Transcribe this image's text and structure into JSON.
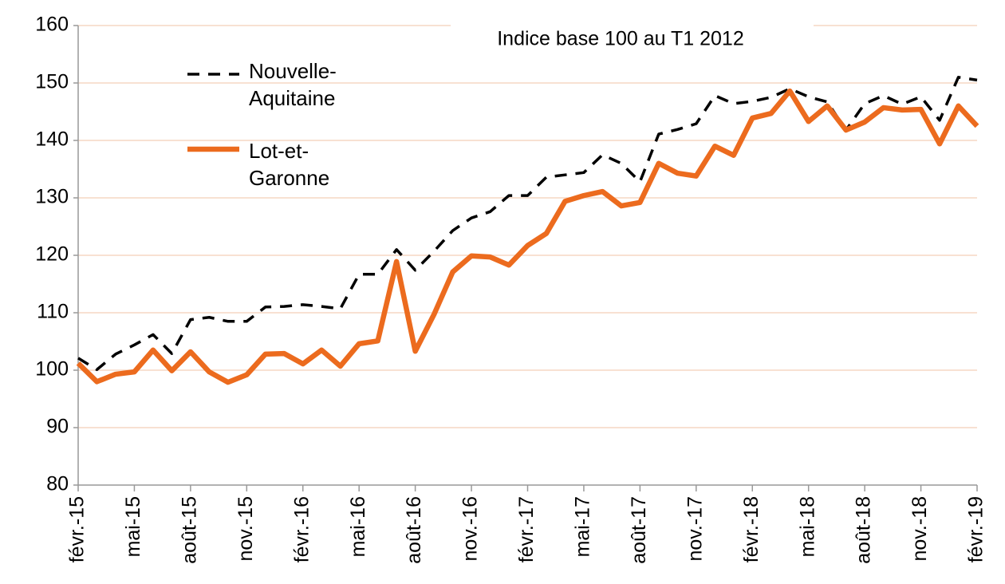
{
  "chart_data": {
    "type": "line",
    "title": "Indice base 100 au T1 2012",
    "categories": [
      "févr.-15",
      null,
      null,
      "mai-15",
      null,
      null,
      "août-15",
      null,
      null,
      "nov.-15",
      null,
      null,
      "févr.-16",
      null,
      null,
      "mai-16",
      null,
      null,
      "août-16",
      null,
      null,
      "nov.-16",
      null,
      null,
      "févr.-17",
      null,
      null,
      "mai-17",
      null,
      null,
      "août-17",
      null,
      null,
      "nov.-17",
      null,
      null,
      "févr.-18",
      null,
      null,
      "mai-18",
      null,
      null,
      "août-18",
      null,
      null,
      "nov.-18",
      null,
      null,
      "févr.-19"
    ],
    "series": [
      {
        "name": "Nouvelle-Aquitaine",
        "color": "#000000",
        "dashed": true,
        "values": [
          102.1,
          100.1,
          102.8,
          104.4,
          106.2,
          102.9,
          108.8,
          109.2,
          108.5,
          108.5,
          111.0,
          111.1,
          111.4,
          111.1,
          110.7,
          116.7,
          116.7,
          121.0,
          117.4,
          120.7,
          124.3,
          126.5,
          127.6,
          130.4,
          130.4,
          133.6,
          134.0,
          134.4,
          137.5,
          136.0,
          132.8,
          141.1,
          141.9,
          142.9,
          147.8,
          146.4,
          146.8,
          147.5,
          149.0,
          147.6,
          146.7,
          141.8,
          146.4,
          147.8,
          146.3,
          147.6,
          143.5,
          151.0,
          150.5
        ]
      },
      {
        "name": "Lot-et-Garonne",
        "color": "#ec6b1e",
        "dashed": false,
        "values": [
          101.2,
          98.0,
          99.3,
          99.7,
          103.5,
          99.9,
          103.2,
          99.7,
          97.9,
          99.2,
          102.8,
          102.9,
          101.1,
          103.5,
          100.7,
          104.6,
          105.1,
          118.9,
          103.3,
          109.7,
          117.1,
          119.9,
          119.7,
          118.3,
          121.7,
          123.8,
          129.4,
          130.4,
          131.1,
          128.6,
          129.2,
          136.0,
          134.3,
          133.8,
          139.0,
          137.4,
          143.9,
          144.7,
          148.6,
          143.3,
          146.0,
          141.8,
          143.2,
          145.7,
          145.3,
          145.4,
          139.4,
          146.0,
          142.5
        ]
      }
    ],
    "ylim": [
      80,
      160
    ],
    "yticks": [
      80,
      90,
      100,
      110,
      120,
      130,
      140,
      150,
      160
    ],
    "grid": true
  }
}
